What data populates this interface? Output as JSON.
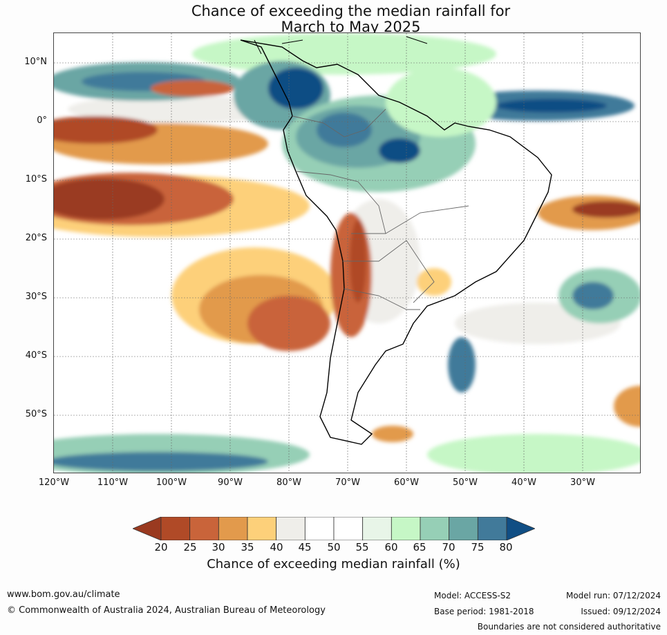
{
  "title": {
    "line1": "Chance of exceeding the median rainfall for",
    "line2": "March to May 2025"
  },
  "map": {
    "lat_labels": [
      "10°N",
      "0°",
      "10°S",
      "20°S",
      "30°S",
      "40°S",
      "50°S"
    ],
    "lon_labels": [
      "120°W",
      "110°W",
      "100°W",
      "90°W",
      "80°W",
      "70°W",
      "60°W",
      "50°W",
      "40°W",
      "30°W"
    ]
  },
  "legend": {
    "ticks": [
      "20",
      "25",
      "30",
      "35",
      "40",
      "45",
      "50",
      "55",
      "60",
      "65",
      "70",
      "75",
      "80"
    ],
    "label": "Chance of exceeding median rainfall (%)",
    "colors": [
      "#9a3a20",
      "#b04a27",
      "#c9643a",
      "#e29a4c",
      "#fdd07a",
      "#efeeea",
      "#ffffff",
      "#ffffff",
      "#e8f5e8",
      "#c6f7c6",
      "#96cfb6",
      "#6aa6a4",
      "#417a9a",
      "#104e84"
    ]
  },
  "footer": {
    "website": "www.bom.gov.au/climate",
    "copyright": "© Commonwealth of Australia 2024, Australian Bureau of Meteorology",
    "model": "Model: ACCESS-S2",
    "base_period": "Base period: 1981-2018",
    "model_run": "Model run: 07/12/2024",
    "issued": "Issued: 09/12/2024",
    "disclaimer": "Boundaries are not considered authoritative"
  }
}
